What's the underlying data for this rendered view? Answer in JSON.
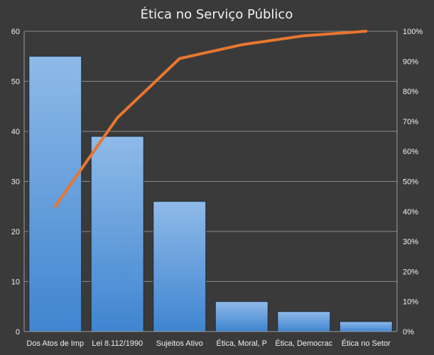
{
  "chart_data": {
    "type": "bar",
    "title": "Ética  no Serviço Público",
    "categories": [
      "Dos Atos de Imp",
      "Lei 8.112/1990",
      "Sujeitos Ativo",
      "Ética, Moral, P",
      "Ética, Democrac",
      "Ética no Setor"
    ],
    "series": [
      {
        "type": "bar",
        "values": [
          55,
          39,
          26,
          6,
          4,
          2
        ]
      },
      {
        "type": "line",
        "axis": "right",
        "values": [
          41.7,
          71.2,
          90.9,
          95.5,
          98.5,
          100
        ]
      }
    ],
    "ylim": [
      0,
      60
    ],
    "yticks": [
      "0",
      "10",
      "20",
      "30",
      "40",
      "50",
      "60"
    ],
    "y2lim": [
      0,
      100
    ],
    "y2ticks": [
      "0%",
      "10%",
      "20%",
      "30%",
      "40%",
      "50%",
      "60%",
      "70%",
      "80%",
      "90%",
      "100%"
    ],
    "grid": true,
    "legend": "none",
    "colors": {
      "background": "#3a3a3a",
      "bar": "#4a8fd6",
      "bar_light": "#8fbae8",
      "line": "#e8772e",
      "grid": "#8a8a8a",
      "text": "#f0f0f0"
    }
  }
}
